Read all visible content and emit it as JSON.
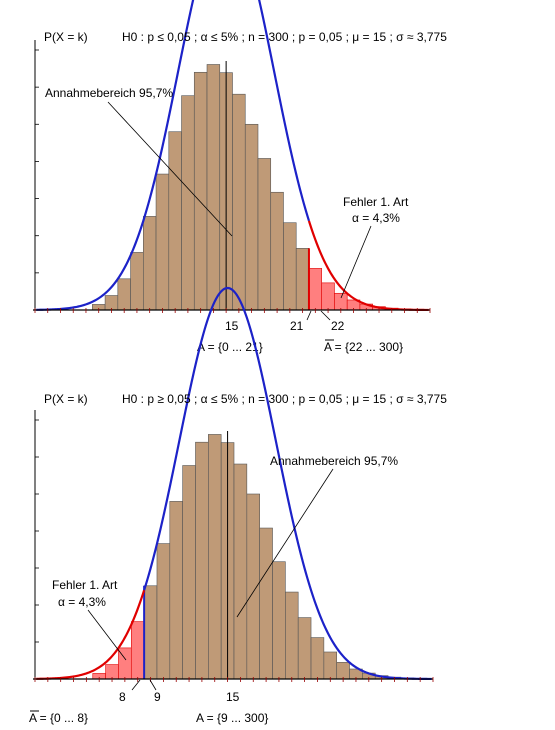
{
  "colors": {
    "bar_fill": "#bf9a77",
    "bar_stroke": "#555555",
    "error_fill": "#ff7f7f",
    "error_stroke": "#e00000",
    "curve_blue": "#1c22c8",
    "curve_red": "#e00000",
    "axis": "#000000",
    "axis_ticks": "#990000"
  },
  "chart_data": [
    {
      "type": "bar",
      "title": "H0 : p ≤ 0,05 ; α ≤ 5% ; n = 300 ; p = 0,05 ; μ = 15 ; σ ≈ 3,775",
      "ylabel": "P(X = k)",
      "distribution": "binomial",
      "n": 300,
      "p": 0.05,
      "mu": 15,
      "sigma": 3.775,
      "x": [
        5,
        6,
        7,
        8,
        9,
        10,
        11,
        12,
        13,
        14,
        15,
        16,
        17,
        18,
        19,
        20,
        21,
        22,
        23,
        24,
        25,
        26,
        27,
        28,
        29
      ],
      "values": [
        0.0015,
        0.0039,
        0.0084,
        0.0155,
        0.0252,
        0.0366,
        0.048,
        0.0577,
        0.064,
        0.0661,
        0.0639,
        0.0581,
        0.05,
        0.0408,
        0.0317,
        0.0235,
        0.0166,
        0.0112,
        0.0073,
        0.0045,
        0.0027,
        0.0016,
        0.0009,
        0.0005,
        0.0003
      ],
      "xlim": [
        0,
        31
      ],
      "ylim": [
        0,
        0.07
      ],
      "grid": false,
      "tick_labels": [
        "15",
        "21",
        "22"
      ],
      "rejection_region": "right",
      "rejection_start": 22,
      "annotations": {
        "acceptance_label": "Annahmebereich 95,7%",
        "error_title": "Fehler 1. Art",
        "error_alpha": "α = 4,3%",
        "set_A": "A = {0 ... 21}",
        "set_Abar": "A = {22 ... 300}"
      }
    },
    {
      "type": "bar",
      "title": "H0 : p ≥ 0,05 ; α ≤ 5% ; n = 300 ; p = 0,05 ; μ = 15 ; σ ≈ 3,775",
      "ylabel": "P(X = k)",
      "distribution": "binomial",
      "n": 300,
      "p": 0.05,
      "mu": 15,
      "sigma": 3.775,
      "x": [
        5,
        6,
        7,
        8,
        9,
        10,
        11,
        12,
        13,
        14,
        15,
        16,
        17,
        18,
        19,
        20,
        21,
        22,
        23,
        24,
        25,
        26,
        27,
        28,
        29
      ],
      "values": [
        0.0015,
        0.0039,
        0.0084,
        0.0155,
        0.0252,
        0.0366,
        0.048,
        0.0577,
        0.064,
        0.0661,
        0.0639,
        0.0581,
        0.05,
        0.0408,
        0.0317,
        0.0235,
        0.0166,
        0.0112,
        0.0073,
        0.0045,
        0.0027,
        0.0016,
        0.0009,
        0.0005,
        0.0003
      ],
      "xlim": [
        0,
        31
      ],
      "ylim": [
        0,
        0.07
      ],
      "grid": false,
      "tick_labels": [
        "8",
        "9",
        "15"
      ],
      "rejection_region": "left",
      "rejection_end": 8,
      "annotations": {
        "acceptance_label": "Annahmebereich 95,7%",
        "error_title": "Fehler 1. Art",
        "error_alpha": "α = 4,3%",
        "set_A": "A = {9 ... 300}",
        "set_Abar": "A = {0 ... 8}"
      }
    }
  ]
}
